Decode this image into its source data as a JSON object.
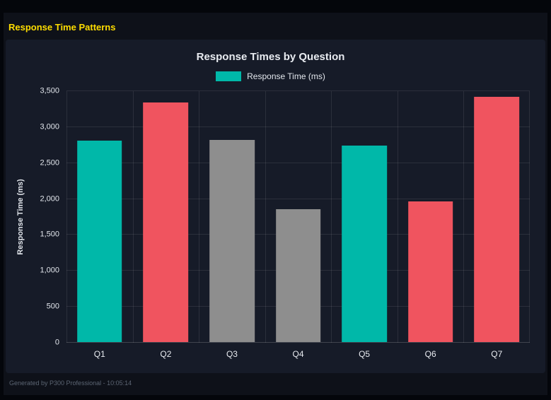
{
  "page": {
    "title": "Response Time Patterns",
    "footer": "Generated by P300 Professional - 10:05:14"
  },
  "chart": {
    "title": "Response Times by Question",
    "legend_label": "Response Time (ms)",
    "y_axis_label": "Response Time (ms)"
  },
  "chart_data": {
    "type": "bar",
    "title": "Response Times by Question",
    "categories": [
      "Q1",
      "Q2",
      "Q3",
      "Q4",
      "Q5",
      "Q6",
      "Q7"
    ],
    "values": [
      2800,
      3330,
      2810,
      1850,
      2730,
      1960,
      3410
    ],
    "colors": [
      "#00b8a9",
      "#f0545f",
      "#8e8e8e",
      "#8e8e8e",
      "#00b8a9",
      "#f0545f",
      "#f0545f"
    ],
    "xlabel": "",
    "ylabel": "Response Time (ms)",
    "ylim": [
      0,
      3500
    ],
    "ytick_values": [
      0,
      500,
      1000,
      1500,
      2000,
      2500,
      3000,
      3500
    ],
    "ytick_labels": [
      "0",
      "500",
      "1,000",
      "1,500",
      "2,000",
      "2,500",
      "3,000",
      "3,500"
    ],
    "grid": true,
    "legend_position": "top",
    "legend": [
      {
        "label": "Response Time (ms)",
        "color": "#00b8a9"
      }
    ]
  },
  "theme": {
    "accent_yellow": "#ffdd00",
    "teal": "#00b8a9",
    "red": "#f0545f",
    "gray": "#8e8e8e",
    "page_background": "#0e1119",
    "card_background": "#161b28"
  }
}
